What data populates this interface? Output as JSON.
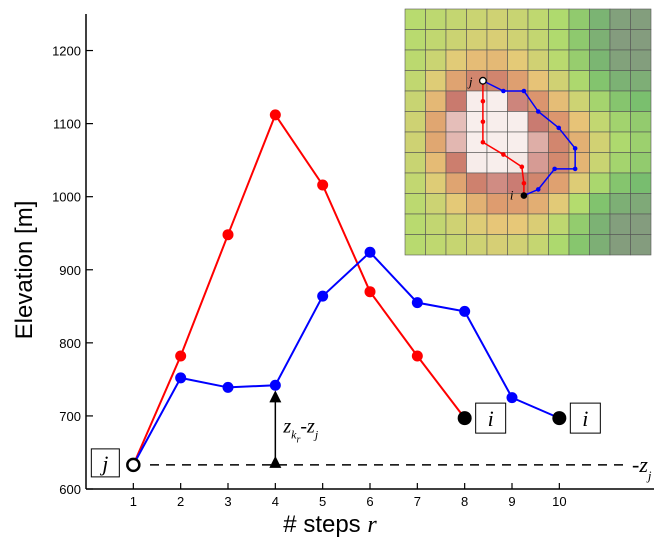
{
  "chart_data": {
    "type": "line",
    "xlabel": "# steps ",
    "xlabel_var": "r",
    "ylabel": "Elevation [m]",
    "xlim": [
      0,
      12
    ],
    "ylim": [
      600,
      1250
    ],
    "x_ticks": [
      "1",
      "2",
      "3",
      "4",
      "5",
      "6",
      "7",
      "8",
      "9",
      "10"
    ],
    "y_ticks": [
      "600",
      "700",
      "800",
      "900",
      "1000",
      "1100",
      "1200"
    ],
    "grid": false,
    "series": [
      {
        "color": "#ff0000",
        "x": [
          1,
          2,
          3,
          4,
          5,
          6,
          7,
          8
        ],
        "y": [
          633,
          782,
          948,
          1112,
          1016,
          870,
          782,
          697
        ]
      },
      {
        "color": "#0000ff",
        "x": [
          1,
          2,
          3,
          4,
          5,
          6,
          7,
          8,
          9,
          10
        ],
        "y": [
          633,
          752,
          739,
          742,
          864,
          924,
          855,
          843,
          725,
          697
        ]
      }
    ],
    "baseline": {
      "y": 633,
      "label": "-z",
      "label_sub": "j"
    },
    "start_label": "j",
    "end_labels": [
      "i",
      "i"
    ],
    "diff_annotation": {
      "x": 4,
      "y_from": 633,
      "y_to": 735,
      "text": "z",
      "sub": "k",
      "subsub": "r",
      "suffix": "-z",
      "suffix_sub": "j"
    },
    "inset": {
      "start_label": "j",
      "end_label": "i",
      "colors": {
        "red": "#ff0000",
        "blue": "#0000ff",
        "grid_line": "#555555"
      }
    }
  }
}
